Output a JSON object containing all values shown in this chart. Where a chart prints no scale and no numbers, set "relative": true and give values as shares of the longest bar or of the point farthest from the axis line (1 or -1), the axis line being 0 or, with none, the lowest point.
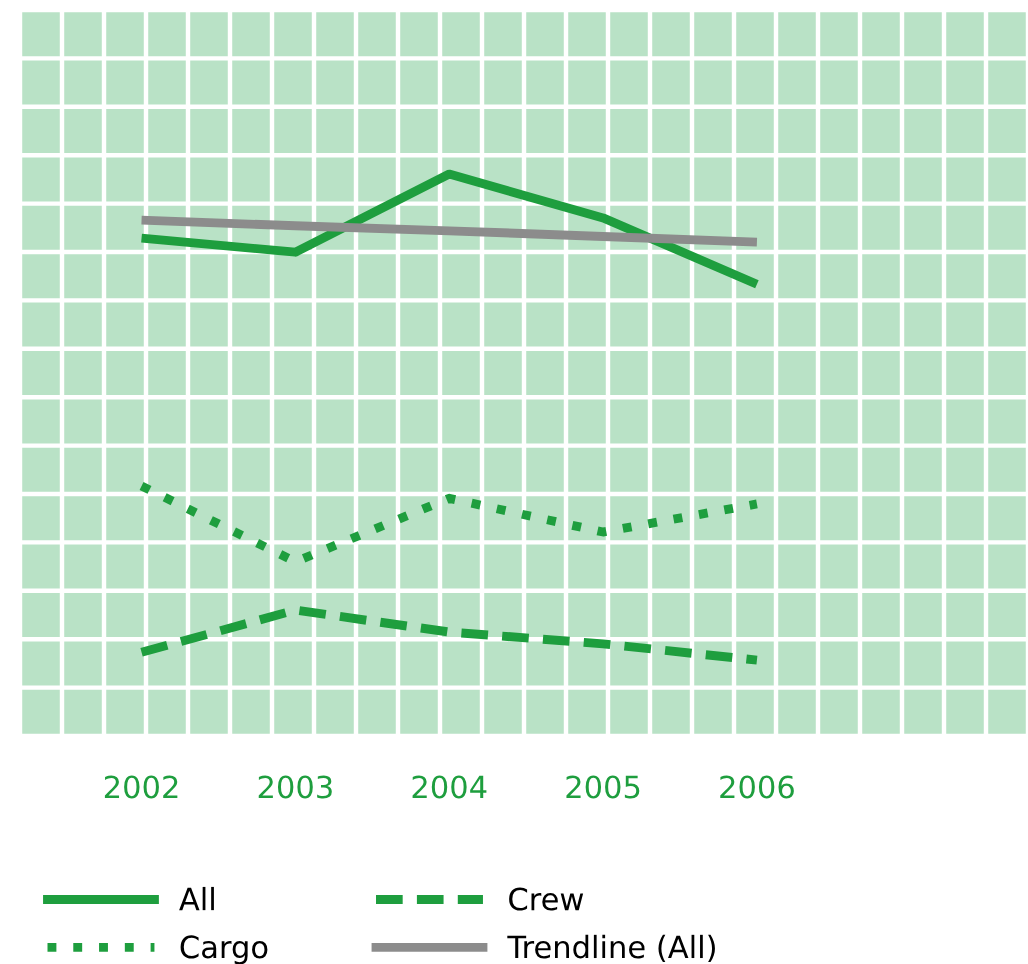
{
  "chart_data": {
    "type": "line",
    "relative": true,
    "categories": [
      "2002",
      "2003",
      "2004",
      "2005",
      "2006"
    ],
    "series": [
      {
        "name": "All",
        "color": "#1e9e3e",
        "line_style": "solid",
        "values": [
          0.886,
          0.861,
          1,
          0.922,
          0.804
        ]
      },
      {
        "name": "Cargo",
        "color": "#1e9e3e",
        "line_style": "dotted",
        "values": [
          0.445,
          0.31,
          0.423,
          0.363,
          0.413
        ]
      },
      {
        "name": "Crew",
        "color": "#1e9e3e",
        "line_style": "dashed",
        "values": [
          0.149,
          0.224,
          0.185,
          0.164,
          0.135
        ]
      },
      {
        "name": "Trendline (All)",
        "color": "#8c8c8c",
        "line_style": "solid",
        "values": [
          0.918,
          0.908,
          0.899,
          0.889,
          0.879
        ]
      }
    ],
    "grid": true,
    "legend": "bottom",
    "marker": "none"
  }
}
